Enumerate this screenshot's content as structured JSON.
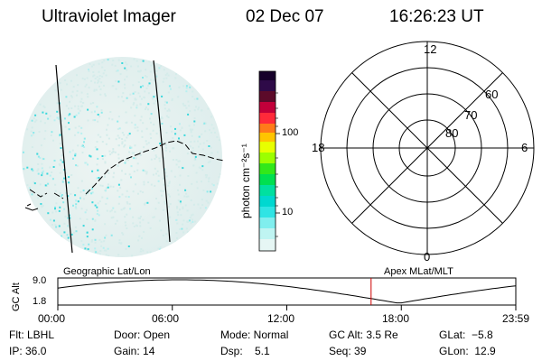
{
  "header": {
    "instrument": "Ultraviolet Imager",
    "date": "02 Dec 07",
    "time": "16:26:23 UT"
  },
  "colorbar": {
    "unit_label": "photon cm⁻²s⁻¹",
    "ticks": [
      "100",
      "10"
    ]
  },
  "polar_grid": {
    "mlt_labels": [
      "12",
      "18",
      "6",
      "0"
    ],
    "lat_labels": [
      "60",
      "70",
      "80"
    ]
  },
  "timeline": {
    "left_title": "Geographic Lat/Lon",
    "right_title": "Apex MLat/MLT",
    "y_axis_label": "GC Alt",
    "y_ticks": [
      "9.0",
      "1.8"
    ],
    "x_ticks": [
      "00:00",
      "06:00",
      "12:00",
      "18:00",
      "23:59"
    ],
    "current_fraction": 0.684
  },
  "status": {
    "filter": "Flt: LBHL",
    "ip": "IP: 36.0",
    "door": "Door: Open",
    "gain": "Gain: 14",
    "mode": "Mode: Normal",
    "dsp": "Dsp:    5.1",
    "gc_alt": "GC Alt: 3.5 Re",
    "seq": "Seq: 39",
    "glat": "GLat:  −5.8",
    "glon": "GLon:  12.9"
  }
}
